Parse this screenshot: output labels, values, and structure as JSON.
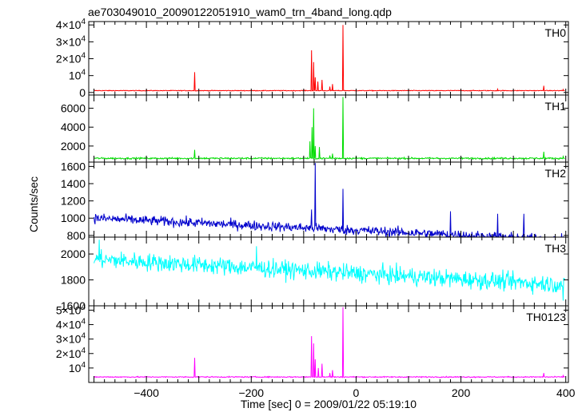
{
  "chart_data": {
    "type": "line",
    "title": "ae703049010_20090122051910_wam0_trn_4band_long.qdp",
    "xlabel": "Time [sec] 0 = 2009/01/22 05:19:10",
    "ylabel": "Counts/sec",
    "xlim": [
      -510,
      405
    ],
    "x_ticks": [
      -400,
      -200,
      0,
      200,
      400
    ],
    "x_tick_labels": [
      "−400",
      "−200",
      "0",
      "200",
      "400"
    ],
    "panels": [
      {
        "name": "TH0",
        "color": "#ff0000",
        "ylim": [
          -1500,
          42000
        ],
        "y_ticks": [
          0,
          10000,
          20000,
          30000,
          40000
        ],
        "y_tick_labels": [
          {
            "t": "0"
          },
          {
            "t": "10",
            "e": "4"
          },
          {
            "t": "2×10",
            "e": "4"
          },
          {
            "t": "3×10",
            "e": "4"
          },
          {
            "t": "4×10",
            "e": "4"
          }
        ],
        "baseline": 1100,
        "noise": 150,
        "trend": 0,
        "spikes": [
          [
            -308,
            12000
          ],
          [
            -85,
            25000
          ],
          [
            -81,
            18000
          ],
          [
            -78,
            9000
          ],
          [
            -73,
            6500
          ],
          [
            -65,
            7500
          ],
          [
            -50,
            3500
          ],
          [
            -45,
            5000
          ],
          [
            -25,
            40000
          ],
          [
            270,
            2000
          ],
          [
            358,
            4000
          ],
          [
            395,
            1800
          ]
        ]
      },
      {
        "name": "TH1",
        "color": "#00dd00",
        "ylim": [
          300,
          7400
        ],
        "y_ticks": [
          2000,
          4000,
          6000
        ],
        "y_tick_labels": [
          {
            "t": "2000"
          },
          {
            "t": "4000"
          },
          {
            "t": "6000"
          }
        ],
        "baseline": 700,
        "noise": 60,
        "trend": 0,
        "spikes": [
          [
            -308,
            1600
          ],
          [
            -88,
            2500
          ],
          [
            -84,
            4000
          ],
          [
            -81,
            6000
          ],
          [
            -78,
            2000
          ],
          [
            -70,
            1900
          ],
          [
            -50,
            1000
          ],
          [
            -45,
            1200
          ],
          [
            -25,
            7200
          ],
          [
            358,
            1400
          ],
          [
            395,
            900
          ]
        ]
      },
      {
        "name": "TH2",
        "color": "#0000cc",
        "ylim": [
          780,
          1650
        ],
        "y_ticks": [
          800,
          1000,
          1200,
          1400,
          1600
        ],
        "y_tick_labels": [
          {
            "t": "800"
          },
          {
            "t": "1000"
          },
          {
            "t": "1200"
          },
          {
            "t": "1400"
          },
          {
            "t": "1600"
          }
        ],
        "baseline": 1000,
        "noise": 40,
        "trend": -0.28,
        "spikes": [
          [
            -85,
            1100
          ],
          [
            -78,
            1640
          ],
          [
            -25,
            1340
          ],
          [
            180,
            1080
          ],
          [
            270,
            1050
          ],
          [
            320,
            1050
          ]
        ]
      },
      {
        "name": "TH3",
        "color": "#00ffff",
        "ylim": [
          1600,
          2130
        ],
        "y_ticks": [
          1600,
          1800,
          2000
        ],
        "y_tick_labels": [
          {
            "t": "1600"
          },
          {
            "t": "1800"
          },
          {
            "t": "2000"
          }
        ],
        "baseline": 1960,
        "noise": 48,
        "trend": -0.22,
        "spikes": [
          [
            -490,
            2110
          ],
          [
            -190,
            2060
          ],
          [
            395,
            1640
          ]
        ]
      },
      {
        "name": "TH0123",
        "color": "#ff00ff",
        "ylim": [
          0,
          53000
        ],
        "y_ticks": [
          10000,
          20000,
          30000,
          40000,
          50000
        ],
        "y_tick_labels": [
          {
            "t": "10",
            "e": "4"
          },
          {
            "t": "2×10",
            "e": "4"
          },
          {
            "t": "3×10",
            "e": "4"
          },
          {
            "t": "4×10",
            "e": "4"
          },
          {
            "t": "5×10",
            "e": "4"
          }
        ],
        "baseline": 3800,
        "noise": 250,
        "trend": 0,
        "spikes": [
          [
            -308,
            17000
          ],
          [
            -85,
            32000
          ],
          [
            -81,
            27000
          ],
          [
            -78,
            16000
          ],
          [
            -72,
            10000
          ],
          [
            -65,
            13000
          ],
          [
            -50,
            6500
          ],
          [
            -45,
            8500
          ],
          [
            -25,
            52000
          ],
          [
            358,
            6500
          ],
          [
            395,
            4800
          ]
        ]
      }
    ]
  }
}
